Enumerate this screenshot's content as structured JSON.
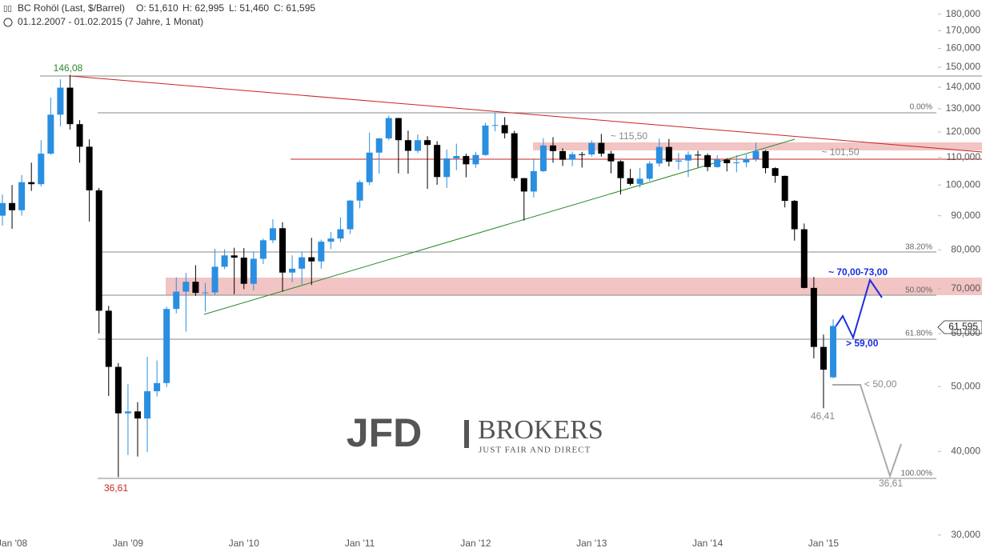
{
  "chart_data": {
    "type": "candlestick",
    "title": "BC Rohöl (Last, $/Barrel)",
    "ohlc_labels": [
      "O: 51,610",
      "H: 62,995",
      "L: 51,460",
      "C: 61,595"
    ],
    "subtitle": "01.12.2007 - 01.02.2015 (7 Jahre, 1 Monat)",
    "last_price_label": "61,595",
    "watermark": [
      "JFD",
      "BROKERS",
      "JUST FAIR AND DIRECT"
    ],
    "annotations": [
      "146,08",
      "36,61",
      "~ 115,50",
      "~ 101,50",
      "0.00%",
      "38.20%",
      "50.00%",
      "61.80%",
      "100.00%",
      "~ 70,00",
      "-73,00",
      "> 59,00",
      "< 50,00",
      "46,41",
      "36,61"
    ],
    "log_scale": true,
    "up_color": "#2a8fe0",
    "down_color": "#000000",
    "categories": [
      null,
      "Jan '08",
      null,
      null,
      null,
      null,
      null,
      null,
      null,
      null,
      null,
      null,
      null,
      "Jan '09",
      null,
      null,
      null,
      null,
      null,
      null,
      null,
      null,
      null,
      null,
      null,
      "Jan '10",
      null,
      null,
      null,
      null,
      null,
      null,
      null,
      null,
      null,
      null,
      null,
      "Jan '11",
      null,
      null,
      null,
      null,
      null,
      null,
      null,
      null,
      null,
      null,
      null,
      "Jan '12",
      null,
      null,
      null,
      null,
      null,
      null,
      null,
      null,
      null,
      null,
      null,
      "Jan '13",
      null,
      null,
      null,
      null,
      null,
      null,
      null,
      null,
      null,
      null,
      null,
      "Jan '14",
      null,
      null,
      null,
      null,
      null,
      null,
      null,
      null,
      null,
      null,
      null,
      "Jan '15",
      null
    ],
    "open": [
      90,
      94.0,
      91.7,
      101.0,
      100.3,
      111.4,
      127.4,
      139.8,
      123.3,
      114.1,
      98.2,
      64.9,
      53.5,
      45.6,
      45.9,
      44.8,
      49.2,
      50.6,
      65.3,
      69.3,
      71.7,
      69.0,
      69.1,
      75.5,
      78.5,
      77.9,
      71.2,
      77.6,
      82.7,
      86.2,
      74.0,
      75.0,
      78.0,
      76.9,
      82.3,
      83.2,
      85.9,
      94.8,
      101.0,
      111.8,
      117.4,
      125.9,
      116.7,
      112.5,
      116.7,
      114.8,
      102.8,
      109.6,
      110.5,
      107.4,
      110.9,
      122.7,
      122.9,
      119.5,
      102.4,
      97.8,
      104.9,
      114.6,
      112.4,
      109.1,
      111.2,
      111.1,
      115.6,
      111.4,
      108.5,
      102.4,
      100.4,
      102.2,
      107.7,
      114.0,
      108.4,
      108.8,
      111.0,
      110.8,
      106.4,
      109.1,
      107.8,
      108.1,
      109.4,
      112.4,
      106.0,
      103.2,
      94.7,
      85.9,
      70.2,
      57.3,
      51.61
    ],
    "high": [
      96.8,
      100,
      103.5,
      108,
      116.7,
      135.1,
      143.9,
      146.08,
      125,
      117,
      99,
      66,
      54.2,
      50.4,
      47.4,
      55.4,
      54.7,
      65.8,
      72.8,
      73.9,
      75.9,
      71.4,
      80.3,
      80.2,
      80.6,
      80.5,
      79.5,
      83.2,
      88.9,
      88.0,
      78.5,
      79.5,
      83.4,
      82.9,
      85.1,
      89.5,
      95.0,
      101.7,
      119.8,
      117.6,
      127.0,
      126.0,
      120.6,
      119.0,
      118.3,
      116.3,
      113.0,
      115.3,
      111.4,
      112.1,
      123.9,
      128.4,
      126.3,
      120.5,
      102.5,
      109.2,
      117.5,
      117.9,
      113.5,
      112.2,
      112.1,
      116.6,
      119.2,
      112.5,
      108.9,
      105.7,
      106.0,
      108.5,
      117.3,
      117.2,
      111.7,
      112.3,
      112.5,
      111.5,
      110.8,
      109.7,
      110.8,
      111.1,
      115.7,
      112.8,
      106.3,
      103.3,
      95.0,
      87.6,
      72.9,
      59.8,
      62.995
    ],
    "low": [
      87,
      86,
      90,
      98,
      99.5,
      111,
      122.4,
      121,
      108,
      88.2,
      60,
      48.4,
      36.61,
      39.5,
      39.3,
      39.9,
      48.3,
      49.9,
      64.3,
      60.4,
      68.3,
      64.7,
      68.5,
      74.9,
      68.7,
      69.9,
      69.6,
      76.2,
      81.9,
      69.3,
      71.6,
      71.0,
      70.9,
      75.0,
      80.2,
      82.2,
      84.5,
      92.3,
      100.0,
      104.0,
      116.7,
      104.1,
      104.0,
      111.6,
      98.7,
      100.1,
      99.0,
      105.2,
      102.7,
      106.1,
      110.6,
      120.3,
      117.4,
      101.4,
      88.5,
      95.8,
      104.5,
      108.0,
      106.8,
      106.7,
      106.2,
      110.3,
      110.3,
      104.1,
      96.8,
      99.8,
      99.1,
      101.4,
      106.6,
      106.6,
      105.5,
      102.8,
      106.3,
      104.9,
      106.1,
      104.8,
      104.5,
      106.3,
      108.4,
      104.1,
      100.8,
      92.6,
      82.6,
      70.1,
      55.1,
      46.41,
      51.46
    ],
    "close": [
      94.0,
      91.7,
      101.0,
      100.3,
      111.4,
      127.4,
      139.8,
      123.3,
      114.1,
      98.2,
      64.9,
      53.5,
      45.6,
      45.9,
      44.8,
      49.2,
      50.6,
      65.3,
      69.3,
      71.7,
      69.0,
      69.1,
      75.5,
      78.5,
      77.9,
      71.2,
      77.6,
      82.7,
      86.2,
      74.0,
      75.0,
      78.0,
      76.9,
      82.3,
      83.2,
      85.9,
      94.8,
      101.0,
      111.8,
      117.4,
      125.9,
      116.7,
      112.5,
      116.7,
      114.8,
      102.8,
      109.6,
      110.5,
      107.4,
      110.9,
      122.7,
      122.9,
      119.5,
      102.4,
      97.8,
      104.9,
      114.6,
      112.4,
      109.1,
      111.2,
      111.1,
      115.6,
      111.4,
      108.5,
      102.4,
      100.4,
      102.2,
      107.7,
      114.0,
      108.4,
      108.8,
      111.0,
      110.8,
      106.4,
      109.1,
      107.8,
      108.1,
      109.4,
      112.4,
      106.0,
      103.2,
      94.7,
      85.9,
      70.2,
      57.3,
      52.99,
      61.595
    ],
    "ylim": [
      28.3,
      189
    ],
    "yticks": [
      {
        "value": 30,
        "label": "30,000"
      },
      {
        "value": 40,
        "label": "40,000"
      },
      {
        "value": 50,
        "label": "50,000"
      },
      {
        "value": 60,
        "label": "60,000"
      },
      {
        "value": 70,
        "label": "70,000"
      },
      {
        "value": 80,
        "label": "80,000"
      },
      {
        "value": 90,
        "label": "90,000"
      },
      {
        "value": 100,
        "label": "100,000"
      },
      {
        "value": 110,
        "label": "110,000"
      },
      {
        "value": 120,
        "label": "120,000"
      },
      {
        "value": 130,
        "label": "130,000"
      },
      {
        "value": 140,
        "label": "140,000"
      },
      {
        "value": 150,
        "label": "150,000"
      },
      {
        "value": 160,
        "label": "160,000"
      },
      {
        "value": 170,
        "label": "170,000"
      },
      {
        "value": 180,
        "label": "180,000"
      }
    ]
  }
}
